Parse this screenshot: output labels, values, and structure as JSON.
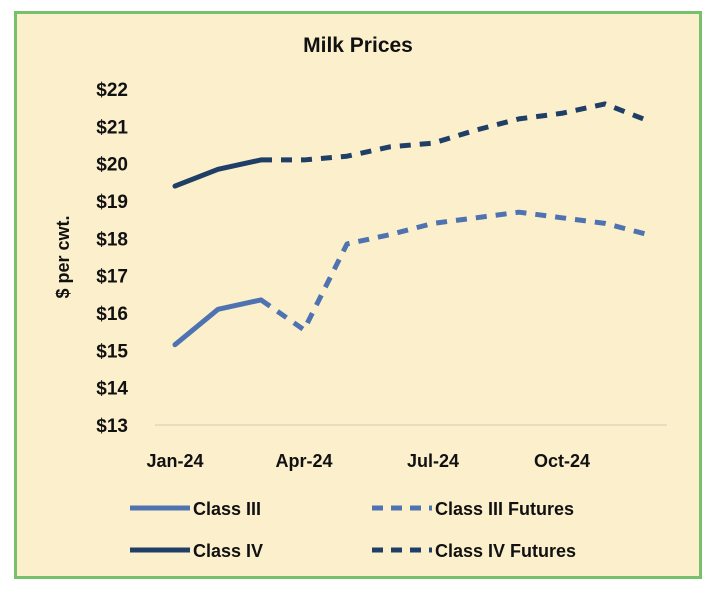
{
  "chart_data": {
    "type": "line",
    "title": "Milk Prices",
    "ylabel": "$ per cwt.",
    "xlabel": "",
    "x": [
      "Jan-24",
      "Feb-24",
      "Mar-24",
      "Apr-24",
      "May-24",
      "Jun-24",
      "Jul-24",
      "Aug-24",
      "Sep-24",
      "Oct-24",
      "Nov-24",
      "Dec-24"
    ],
    "x_tick_labels": [
      "Jan-24",
      "Apr-24",
      "Jul-24",
      "Oct-24"
    ],
    "ylim": [
      13,
      22
    ],
    "y_tick_labels": [
      "$13",
      "$14",
      "$15",
      "$16",
      "$17",
      "$18",
      "$19",
      "$20",
      "$21",
      "$22"
    ],
    "grid": false,
    "legend_position": "bottom",
    "series": [
      {
        "name": "Class III",
        "color": "#4f72b0",
        "dashed": false,
        "values": [
          15.15,
          16.1,
          16.35,
          null,
          null,
          null,
          null,
          null,
          null,
          null,
          null,
          null
        ]
      },
      {
        "name": "Class III Futures",
        "color": "#4f72b0",
        "dashed": true,
        "values": [
          null,
          null,
          16.35,
          15.55,
          17.85,
          18.1,
          18.4,
          18.55,
          18.7,
          18.55,
          18.4,
          18.1
        ]
      },
      {
        "name": "Class IV",
        "color": "#1f3f66",
        "dashed": false,
        "values": [
          19.4,
          19.85,
          20.1,
          null,
          null,
          null,
          null,
          null,
          null,
          null,
          null,
          null
        ]
      },
      {
        "name": "Class IV Futures",
        "color": "#1f3f66",
        "dashed": true,
        "values": [
          null,
          null,
          20.1,
          20.1,
          20.2,
          20.45,
          20.55,
          20.9,
          21.2,
          21.35,
          21.6,
          21.15
        ]
      }
    ]
  }
}
